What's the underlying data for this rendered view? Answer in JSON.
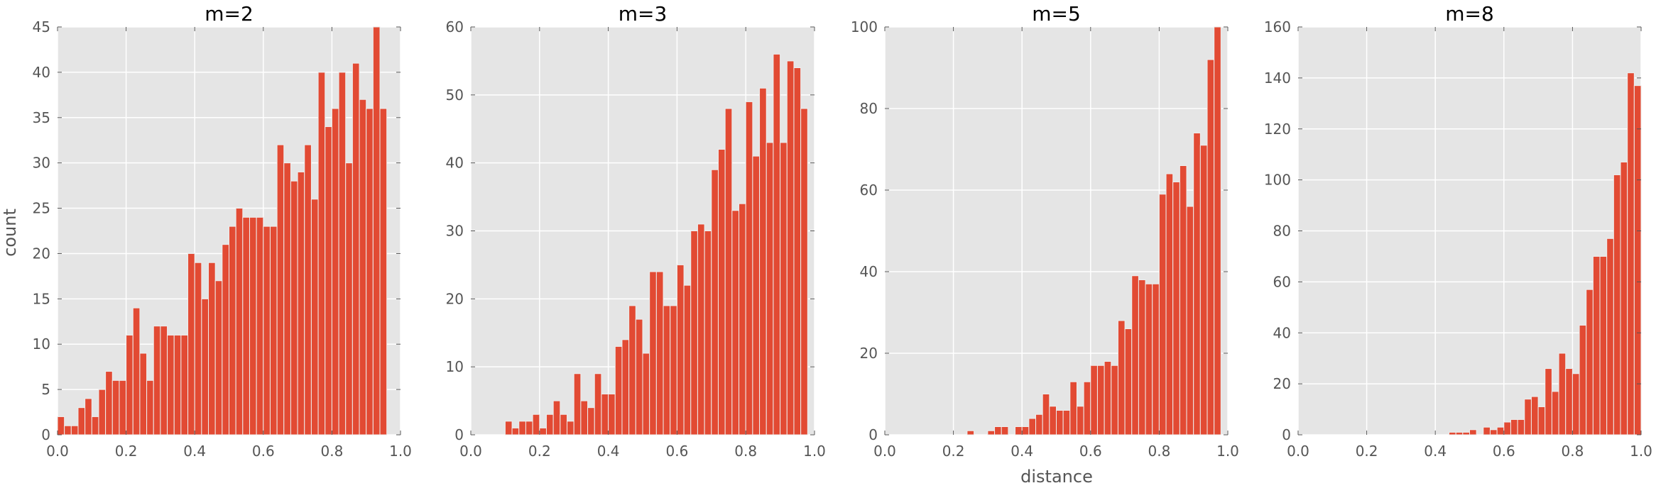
{
  "figure": {
    "xlabel": "distance",
    "ylabel": "count"
  },
  "style": {
    "bar_color": "#E24A33",
    "bar_edge": "#EEEEEE",
    "panel_bg": "#E5E5E5",
    "grid_color": "#FFFFFF",
    "tick_color": "#555555",
    "title_color": "#000000"
  },
  "chart_data": [
    {
      "type": "bar",
      "title": "m=2",
      "xlim": [
        0,
        1
      ],
      "ylim": [
        0,
        45
      ],
      "xticks": [
        "0.0",
        "0.2",
        "0.4",
        "0.6",
        "0.8",
        "1.0"
      ],
      "yticks": [
        0,
        5,
        10,
        15,
        20,
        25,
        30,
        35,
        40,
        45
      ],
      "bin_width": 0.02,
      "bins": [
        0,
        0.02,
        0.04,
        0.06,
        0.08,
        0.1,
        0.12,
        0.14,
        0.16,
        0.18,
        0.2,
        0.22,
        0.24,
        0.26,
        0.28,
        0.3,
        0.32,
        0.34,
        0.36,
        0.38,
        0.4,
        0.42,
        0.44,
        0.46,
        0.48,
        0.5,
        0.52,
        0.54,
        0.56,
        0.58,
        0.6,
        0.62,
        0.64,
        0.66,
        0.68,
        0.7,
        0.72,
        0.74,
        0.76,
        0.78,
        0.8,
        0.82,
        0.84,
        0.86,
        0.88,
        0.9,
        0.92,
        0.94,
        0.96,
        0.98
      ],
      "values": [
        2,
        1,
        1,
        3,
        4,
        2,
        5,
        7,
        6,
        6,
        11,
        14,
        9,
        6,
        12,
        12,
        11,
        11,
        11,
        20,
        19,
        15,
        19,
        17,
        21,
        23,
        25,
        24,
        24,
        24,
        23,
        23,
        32,
        30,
        28,
        29,
        32,
        26,
        40,
        34,
        36,
        40,
        30,
        41,
        37,
        36,
        45,
        36,
        0,
        0
      ]
    },
    {
      "type": "bar",
      "title": "m=3",
      "xlim": [
        0,
        1
      ],
      "ylim": [
        0,
        60
      ],
      "xticks": [
        "0.0",
        "0.2",
        "0.4",
        "0.6",
        "0.8",
        "1.0"
      ],
      "yticks": [
        0,
        10,
        20,
        30,
        40,
        50,
        60
      ],
      "bin_width": 0.02,
      "bins": [
        0.1,
        0.12,
        0.14,
        0.16,
        0.18,
        0.2,
        0.22,
        0.24,
        0.26,
        0.28,
        0.3,
        0.32,
        0.34,
        0.36,
        0.38,
        0.4,
        0.42,
        0.44,
        0.46,
        0.48,
        0.5,
        0.52,
        0.54,
        0.56,
        0.58,
        0.6,
        0.62,
        0.64,
        0.66,
        0.68,
        0.7,
        0.72,
        0.74,
        0.76,
        0.78,
        0.8,
        0.82,
        0.84,
        0.86,
        0.88,
        0.9,
        0.92,
        0.94,
        0.96,
        0.98
      ],
      "values": [
        2,
        1,
        2,
        2,
        3,
        1,
        3,
        5,
        3,
        2,
        9,
        5,
        4,
        9,
        6,
        6,
        13,
        14,
        19,
        17,
        12,
        24,
        24,
        19,
        19,
        25,
        22,
        30,
        31,
        30,
        39,
        42,
        48,
        33,
        34,
        49,
        41,
        51,
        43,
        56,
        43,
        55,
        54,
        48,
        0
      ]
    },
    {
      "type": "bar",
      "title": "m=5",
      "xlim": [
        0,
        1
      ],
      "ylim": [
        0,
        100
      ],
      "xticks": [
        "0.0",
        "0.2",
        "0.4",
        "0.6",
        "0.8",
        "1.0"
      ],
      "yticks": [
        0,
        20,
        40,
        60,
        80,
        100
      ],
      "bin_width": 0.02,
      "bins": [
        0.24,
        0.26,
        0.28,
        0.3,
        0.32,
        0.34,
        0.36,
        0.38,
        0.4,
        0.42,
        0.44,
        0.46,
        0.48,
        0.5,
        0.52,
        0.54,
        0.56,
        0.58,
        0.6,
        0.62,
        0.64,
        0.66,
        0.68,
        0.7,
        0.72,
        0.74,
        0.76,
        0.78,
        0.8,
        0.82,
        0.84,
        0.86,
        0.88,
        0.9,
        0.92,
        0.94,
        0.96,
        0.98
      ],
      "values": [
        1,
        0,
        0,
        1,
        2,
        2,
        0,
        2,
        2,
        4,
        5,
        10,
        7,
        6,
        6,
        13,
        7,
        13,
        17,
        17,
        18,
        17,
        28,
        26,
        39,
        38,
        37,
        37,
        59,
        64,
        62,
        66,
        56,
        74,
        71,
        92,
        100,
        0
      ]
    },
    {
      "type": "bar",
      "title": "m=8",
      "xlim": [
        0,
        1
      ],
      "ylim": [
        0,
        160
      ],
      "xticks": [
        "0.0",
        "0.2",
        "0.4",
        "0.6",
        "0.8",
        "1.0"
      ],
      "yticks": [
        0,
        20,
        40,
        60,
        80,
        100,
        120,
        140,
        160
      ],
      "bin_width": 0.02,
      "bins": [
        0.44,
        0.46,
        0.48,
        0.5,
        0.52,
        0.54,
        0.56,
        0.58,
        0.6,
        0.62,
        0.64,
        0.66,
        0.68,
        0.7,
        0.72,
        0.74,
        0.76,
        0.78,
        0.8,
        0.82,
        0.84,
        0.86,
        0.88,
        0.9,
        0.92,
        0.94,
        0.96,
        0.98
      ],
      "values": [
        1,
        1,
        1,
        2,
        0,
        3,
        2,
        3,
        5,
        6,
        6,
        14,
        15,
        11,
        26,
        17,
        32,
        26,
        24,
        43,
        57,
        70,
        70,
        77,
        102,
        107,
        142,
        137
      ]
    }
  ]
}
